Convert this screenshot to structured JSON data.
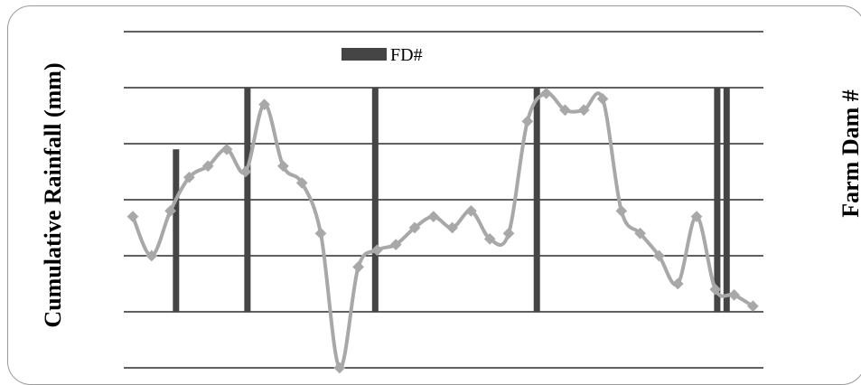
{
  "chart_data": {
    "type": "line",
    "title": "",
    "ylabel": "Cumulative Rainfall (mm)",
    "y2label": "Farm Dam #",
    "ylim": [
      0,
      6
    ],
    "grid": true,
    "legend": {
      "position": "top-center",
      "entries": [
        "FD#"
      ]
    },
    "series": [
      {
        "kind": "line",
        "color": "#a8a8a8",
        "values": [
          2.7,
          2.0,
          2.8,
          3.4,
          3.6,
          3.9,
          3.5,
          4.7,
          3.6,
          3.3,
          2.4,
          0.0,
          1.8,
          2.1,
          2.2,
          2.5,
          2.7,
          2.5,
          2.8,
          2.3,
          2.4,
          4.4,
          4.9,
          4.6,
          4.6,
          4.8,
          2.8,
          2.4,
          2.0,
          1.5,
          2.7,
          1.4,
          1.3,
          1.1
        ]
      },
      {
        "kind": "bar",
        "name": "FD#",
        "color": "#454545",
        "x": [
          2.3,
          6.1,
          12.9,
          21.5,
          31.1,
          31.6
        ],
        "values": [
          3.9,
          5.0,
          5.0,
          5.0,
          5.0,
          5.0
        ]
      }
    ]
  }
}
